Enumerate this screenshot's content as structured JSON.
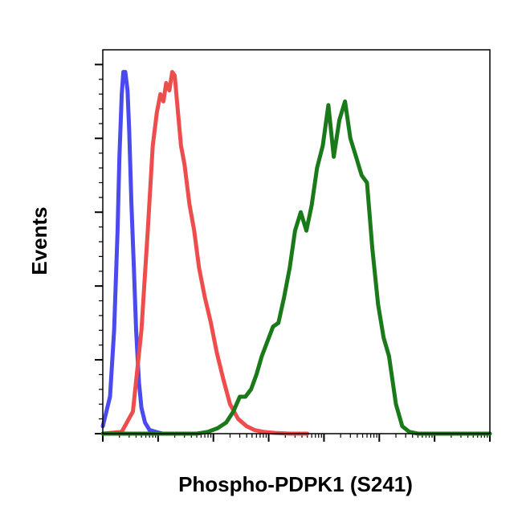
{
  "chart_data": {
    "type": "line",
    "xlabel": "Phospho-PDPK1 (S241)",
    "ylabel": "Events",
    "x_scale": "log",
    "xlim": [
      1,
      10000000
    ],
    "ylim": [
      0,
      1.04
    ],
    "grid": false,
    "legend": "none",
    "series": [
      {
        "color": "#4a4aee",
        "x": [
          1.0,
          1.35,
          1.6,
          1.85,
          2.0,
          2.2,
          2.35,
          2.55,
          2.8,
          3.0,
          3.3,
          3.65,
          4.0,
          4.5,
          5.0,
          5.8,
          7.0,
          9.0,
          12.0,
          20.0
        ],
        "y": [
          0.02,
          0.1,
          0.28,
          0.55,
          0.75,
          0.92,
          0.98,
          0.98,
          0.93,
          0.82,
          0.62,
          0.45,
          0.28,
          0.14,
          0.07,
          0.03,
          0.01,
          0.005,
          0.0,
          0.0
        ]
      },
      {
        "color": "#ee4d4d",
        "x": [
          1.0,
          2.2,
          3.5,
          5.0,
          6.5,
          8.0,
          9.5,
          11.0,
          12.5,
          14.0,
          16.0,
          18.0,
          20.0,
          22.0,
          26.0,
          30.0,
          37.0,
          45.0,
          55.0,
          70.0,
          90.0,
          115.0,
          150.0,
          200.0,
          280.0,
          400.0,
          550.0,
          800.0,
          1300.0,
          2500.0,
          5000.0
        ],
        "y": [
          0.0,
          0.005,
          0.06,
          0.28,
          0.55,
          0.78,
          0.87,
          0.92,
          0.9,
          0.95,
          0.93,
          0.98,
          0.97,
          0.9,
          0.78,
          0.73,
          0.62,
          0.55,
          0.45,
          0.37,
          0.3,
          0.22,
          0.15,
          0.08,
          0.04,
          0.02,
          0.01,
          0.005,
          0.002,
          0.0,
          0.0
        ]
      },
      {
        "color": "#1a7a1a",
        "x": [
          1.0,
          50.0,
          80.0,
          120.0,
          170.0,
          230.0,
          300.0,
          380.0,
          480.0,
          600.0,
          750.0,
          950.0,
          1200.0,
          1500.0,
          1900.0,
          2400.0,
          3000.0,
          3800.0,
          4800.0,
          6000.0,
          7500.0,
          9500.0,
          12000.0,
          15000.0,
          19000.0,
          24000.0,
          30000.0,
          38000.0,
          48000.0,
          60000.0,
          75000.0,
          95000.0,
          120000.0,
          150000.0,
          200000.0,
          260000.0,
          350000.0,
          500000.0,
          10000000.0
        ],
        "y": [
          0.0,
          0.0,
          0.005,
          0.015,
          0.03,
          0.06,
          0.1,
          0.1,
          0.12,
          0.16,
          0.21,
          0.25,
          0.29,
          0.3,
          0.37,
          0.45,
          0.55,
          0.6,
          0.55,
          0.62,
          0.72,
          0.78,
          0.89,
          0.75,
          0.85,
          0.9,
          0.8,
          0.75,
          0.7,
          0.68,
          0.5,
          0.35,
          0.26,
          0.21,
          0.08,
          0.02,
          0.005,
          0.0,
          0.0
        ]
      }
    ]
  }
}
